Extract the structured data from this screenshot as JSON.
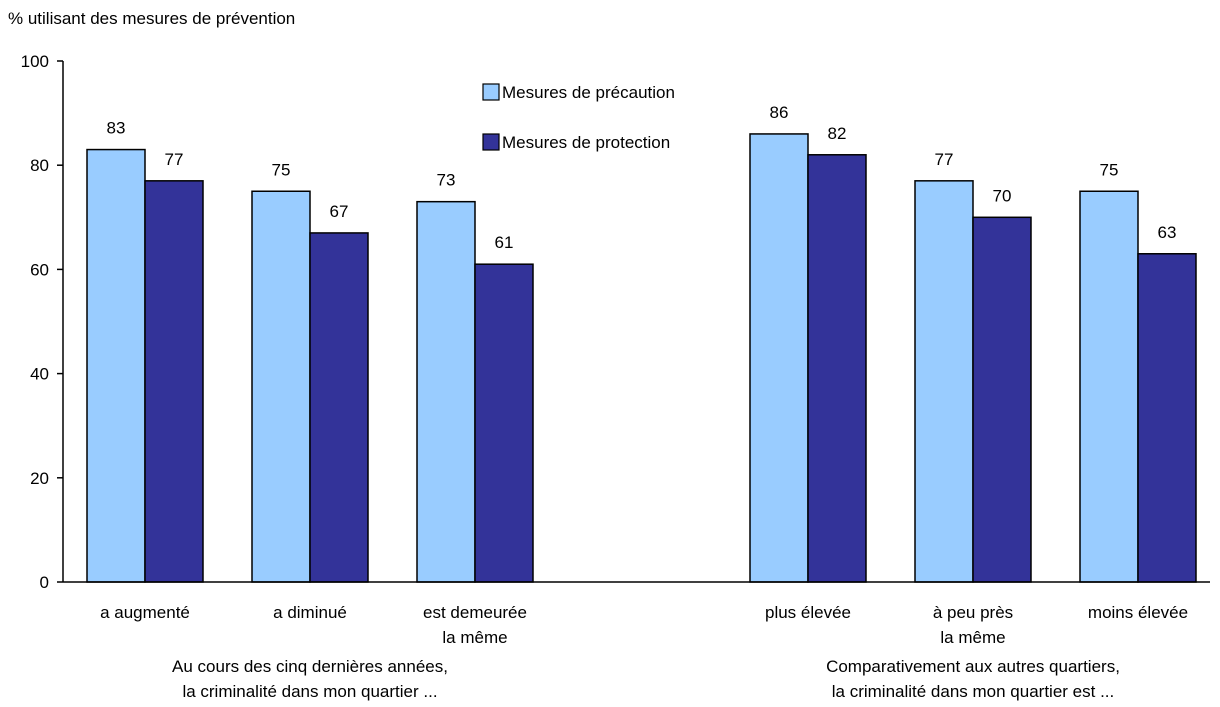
{
  "chart_data": {
    "type": "bar",
    "ylabel": "% utilisant des mesures de prévention",
    "ylim": [
      0,
      100
    ],
    "yticks": [
      "0",
      "20",
      "40",
      "60",
      "80",
      "100"
    ],
    "grid": false,
    "legend_position": "top-center",
    "colors": {
      "precaution": "#99CCFF",
      "protection": "#333399"
    },
    "series": [
      {
        "name": "Mesures de précaution",
        "key": "precaution",
        "values": [
          83,
          75,
          73,
          86,
          77,
          75
        ]
      },
      {
        "name": "Mesures de protection",
        "key": "protection",
        "values": [
          77,
          67,
          61,
          82,
          70,
          63
        ]
      }
    ],
    "categories": [
      [
        "a augmenté"
      ],
      [
        "a diminué"
      ],
      [
        "est demeurée",
        "la même"
      ],
      [
        "plus élevée"
      ],
      [
        "à peu près",
        "la même"
      ],
      [
        "moins élevée"
      ]
    ],
    "groups": [
      {
        "lines": [
          "Au cours des cinq dernières années,",
          "la criminalité dans mon quartier ..."
        ],
        "categories": [
          0,
          1,
          2
        ]
      },
      {
        "lines": [
          "Comparativement aux autres quartiers,",
          "la criminalité dans mon quartier est ..."
        ],
        "categories": [
          3,
          4,
          5
        ]
      }
    ]
  }
}
